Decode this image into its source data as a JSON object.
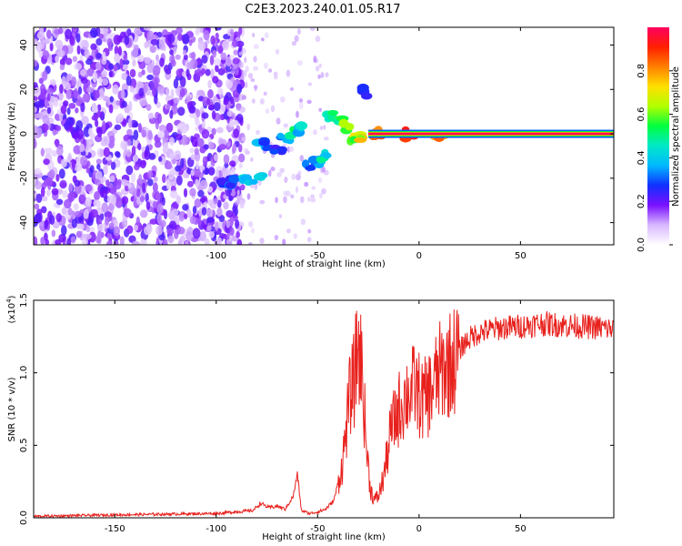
{
  "page_title": "C2E3.2023.240.01.05.R17",
  "chart_data": [
    {
      "type": "heatmap",
      "title": "C2E3.2023.240.01.05.R17",
      "xlabel": "Height of straight line (km)",
      "ylabel": "Frequency (Hz)",
      "xlim": [
        -190,
        96
      ],
      "ylim": [
        -50,
        48
      ],
      "xticks": [
        -150,
        -100,
        -50,
        0,
        50
      ],
      "yticks": [
        -40,
        -20,
        0,
        20,
        40
      ],
      "grid": false,
      "colorbar": {
        "label": "Normalized spectral amplitude",
        "range": [
          0,
          1
        ],
        "ticks": [
          "0.0",
          "0.2",
          "0.4",
          "0.6",
          "0.8"
        ],
        "colors": [
          "#ffffff",
          "#d8b8ff",
          "#7a10ff",
          "#1030ff",
          "#00b8ff",
          "#00e8c8",
          "#00ff40",
          "#b0ff00",
          "#ffe000",
          "#ff8000",
          "#ff2000",
          "#ff0060"
        ]
      },
      "features": {
        "noise_region_x": [
          -190,
          -95
        ],
        "carrier_line": {
          "x": [
            -25,
            96
          ],
          "frequency": 0,
          "amplitude": 1.0
        },
        "scintillation_track": [
          {
            "x": -95,
            "y": -23,
            "a": 0.25
          },
          {
            "x": -92,
            "y": -22,
            "a": 0.3
          },
          {
            "x": -86,
            "y": -21,
            "a": 0.42
          },
          {
            "x": -80,
            "y": -20,
            "a": 0.45
          },
          {
            "x": -78,
            "y": -4,
            "a": 0.35
          },
          {
            "x": -74,
            "y": -5,
            "a": 0.3
          },
          {
            "x": -70,
            "y": -8,
            "a": 0.28
          },
          {
            "x": -66,
            "y": -2,
            "a": 0.35
          },
          {
            "x": -62,
            "y": 1,
            "a": 0.5
          },
          {
            "x": -58,
            "y": 2,
            "a": 0.42
          },
          {
            "x": -54,
            "y": -14,
            "a": 0.3
          },
          {
            "x": -50,
            "y": -12,
            "a": 0.35
          },
          {
            "x": -46,
            "y": -10,
            "a": 0.45
          },
          {
            "x": -44,
            "y": 8,
            "a": 0.5
          },
          {
            "x": -40,
            "y": 6,
            "a": 0.55
          },
          {
            "x": -36,
            "y": 3,
            "a": 0.6
          },
          {
            "x": -32,
            "y": -3,
            "a": 0.65
          },
          {
            "x": -28,
            "y": -2,
            "a": 0.7
          },
          {
            "x": -27,
            "y": 19,
            "a": 0.3
          },
          {
            "x": -20,
            "y": 0,
            "a": 0.85
          },
          {
            "x": -5,
            "y": 0,
            "a": 0.9
          },
          {
            "x": 10,
            "y": 0,
            "a": 0.85
          }
        ]
      }
    },
    {
      "type": "line",
      "xlabel": "Height of straight line (km)",
      "ylabel": "SNR (10 * v/v)",
      "y_multiplier": "(x10",
      "y_exponent": "4",
      "xlim": [
        -190,
        96
      ],
      "ylim": [
        0,
        15000
      ],
      "xticks": [
        -150,
        -100,
        -50,
        0,
        50
      ],
      "yticks": [
        "0.0",
        "0.5",
        "1.0",
        "1.5"
      ],
      "ytick_values": [
        0,
        5000,
        10000,
        15000
      ],
      "grid": false,
      "series": [
        {
          "color": "#e8211d",
          "x": [
            -190,
            -150,
            -100,
            -82,
            -78,
            -74,
            -70,
            -66,
            -62,
            -60,
            -58,
            -54,
            -50,
            -46,
            -42,
            -38,
            -36,
            -34,
            -32,
            -30,
            -28,
            -26,
            -24,
            -22,
            -20,
            -18,
            -16,
            -14,
            -10,
            -6,
            -2,
            2,
            6,
            10,
            14,
            18,
            22,
            26,
            30,
            40,
            50,
            60,
            70,
            80,
            90,
            96
          ],
          "y": [
            100,
            200,
            300,
            500,
            1000,
            700,
            800,
            600,
            1500,
            3000,
            500,
            300,
            400,
            600,
            1200,
            3500,
            6000,
            8500,
            9500,
            12000,
            10000,
            5000,
            2000,
            1200,
            1500,
            2500,
            4000,
            6000,
            7500,
            8500,
            9000,
            8000,
            8800,
            10000,
            10500,
            11000,
            12000,
            12500,
            12800,
            13100,
            13200,
            13400,
            13300,
            13200,
            13100,
            13000
          ]
        }
      ]
    }
  ]
}
